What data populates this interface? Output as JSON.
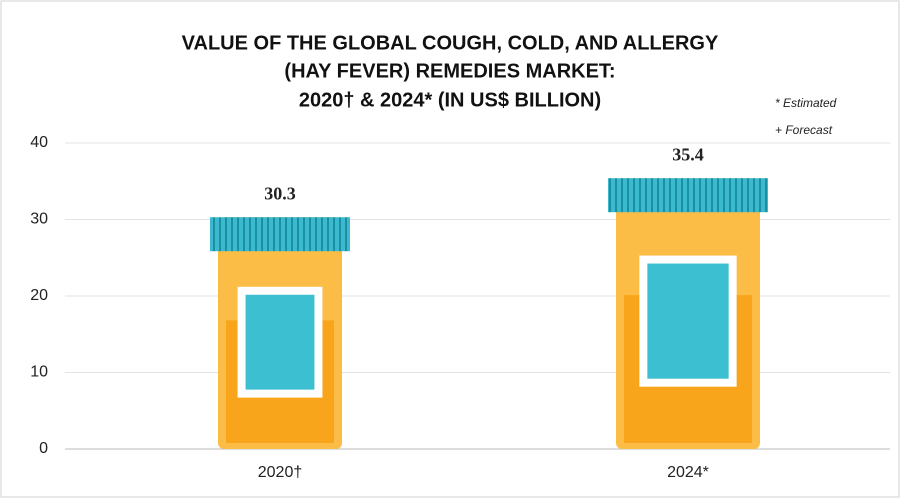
{
  "chart_data": {
    "type": "bar",
    "title": [
      "VALUE OF THE GLOBAL COUGH, COLD, AND ALLERGY",
      "(HAY FEVER) REMEDIES MARKET:",
      "2020† & 2024* (IN US$ BILLION)"
    ],
    "notes": [
      "* Estimated",
      "+ Forecast"
    ],
    "categories": [
      "2020†",
      "2024*"
    ],
    "values": [
      30.3,
      35.4
    ],
    "color": "#fbbd45",
    "ylim": [
      0,
      40
    ],
    "yticks": [
      0,
      10,
      20,
      30,
      40
    ],
    "grid": true
  }
}
